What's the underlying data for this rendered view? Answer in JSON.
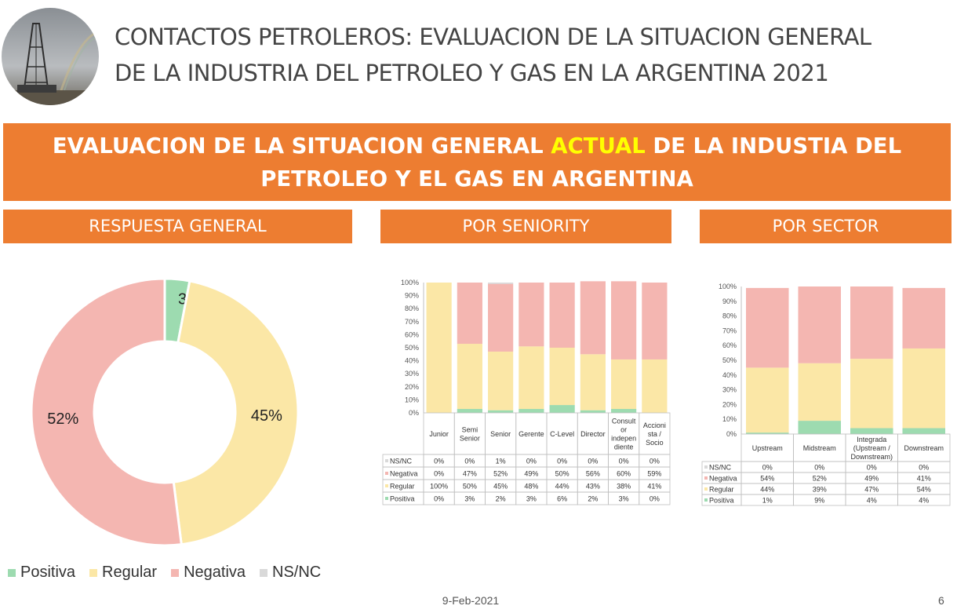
{
  "header": {
    "line1": "CONTACTOS PETROLEROS: EVALUACION DE LA SITUACION GENERAL",
    "line2": "DE LA INDUSTRIA DEL PETROLEO Y GAS EN LA ARGENTINA 2021"
  },
  "banner": {
    "part1": "EVALUACION DE LA SITUACION GENERAL ",
    "highlight": "ACTUAL",
    "part2": " DE LA INDUSTIA DEL",
    "line2": "PETROLEO Y EL GAS EN ARGENTINA"
  },
  "sections": {
    "general": "RESPUESTA GENERAL",
    "seniority": "POR SENIORITY",
    "sector": "POR SECTOR"
  },
  "colors": {
    "Positiva": "#9ddbb0",
    "Regular": "#fbe7a6",
    "Negativa": "#f4b6b1",
    "NS/NC": "#d9d9d9",
    "accent": "#ed7d31",
    "highlight": "#ffff00"
  },
  "legend": [
    "Positiva",
    "Regular",
    "Negativa",
    "NS/NC"
  ],
  "footer": {
    "date": "9-Feb-2021",
    "page": "6"
  },
  "chart_data": [
    {
      "type": "pie",
      "subtype": "donut",
      "categories": [
        "Positiva",
        "Regular",
        "Negativa",
        "NS/NC"
      ],
      "values": [
        3,
        45,
        52,
        0
      ],
      "data_labels": [
        "3%",
        "45%",
        "52%",
        ""
      ],
      "legend_position": "bottom"
    },
    {
      "type": "bar",
      "stacked": "percent",
      "categories": [
        "Junior",
        "Semi Senior",
        "Senior",
        "Gerente",
        "C-Level",
        "Director",
        "Consultor independiente",
        "Accionista / Socio"
      ],
      "category_display": [
        [
          "Junior"
        ],
        [
          "Semi",
          "Senior"
        ],
        [
          "Senior"
        ],
        [
          "Gerente"
        ],
        [
          "C-Level"
        ],
        [
          "Director"
        ],
        [
          "Consult",
          "or",
          "indepen",
          "diente"
        ],
        [
          "Accioni",
          "sta /",
          "Socio"
        ]
      ],
      "series": [
        {
          "name": "Positiva",
          "values": [
            0,
            3,
            2,
            3,
            6,
            2,
            3,
            0
          ]
        },
        {
          "name": "Regular",
          "values": [
            100,
            50,
            45,
            48,
            44,
            43,
            38,
            41
          ]
        },
        {
          "name": "Negativa",
          "values": [
            0,
            47,
            52,
            49,
            50,
            56,
            60,
            59
          ]
        },
        {
          "name": "NS/NC",
          "values": [
            0,
            0,
            1,
            0,
            0,
            0,
            0,
            0
          ]
        }
      ],
      "table_rows": [
        "NS/NC",
        "Negativa",
        "Regular",
        "Positiva"
      ],
      "yticks": [
        "0%",
        "10%",
        "20%",
        "30%",
        "40%",
        "50%",
        "60%",
        "70%",
        "80%",
        "90%",
        "100%"
      ],
      "ylim": [
        0,
        100
      ],
      "data_table": true
    },
    {
      "type": "bar",
      "stacked": "percent",
      "categories": [
        "Upstream",
        "Midstream",
        "Integrada (Upstream / Downstream)",
        "Downstream"
      ],
      "category_display": [
        [
          "Upstream"
        ],
        [
          "Midstream"
        ],
        [
          "Integrada",
          "(Upstream /",
          "Downstream)"
        ],
        [
          "Downstream"
        ]
      ],
      "series": [
        {
          "name": "Positiva",
          "values": [
            1,
            9,
            4,
            4
          ]
        },
        {
          "name": "Regular",
          "values": [
            44,
            39,
            47,
            54
          ]
        },
        {
          "name": "Negativa",
          "values": [
            54,
            52,
            49,
            41
          ]
        },
        {
          "name": "NS/NC",
          "values": [
            0,
            0,
            0,
            0
          ]
        }
      ],
      "table_rows": [
        "NS/NC",
        "Negativa",
        "Regular",
        "Positiva"
      ],
      "yticks": [
        "0%",
        "10%",
        "20%",
        "30%",
        "40%",
        "50%",
        "60%",
        "70%",
        "80%",
        "90%",
        "100%"
      ],
      "ylim": [
        0,
        100
      ],
      "data_table": true
    }
  ]
}
